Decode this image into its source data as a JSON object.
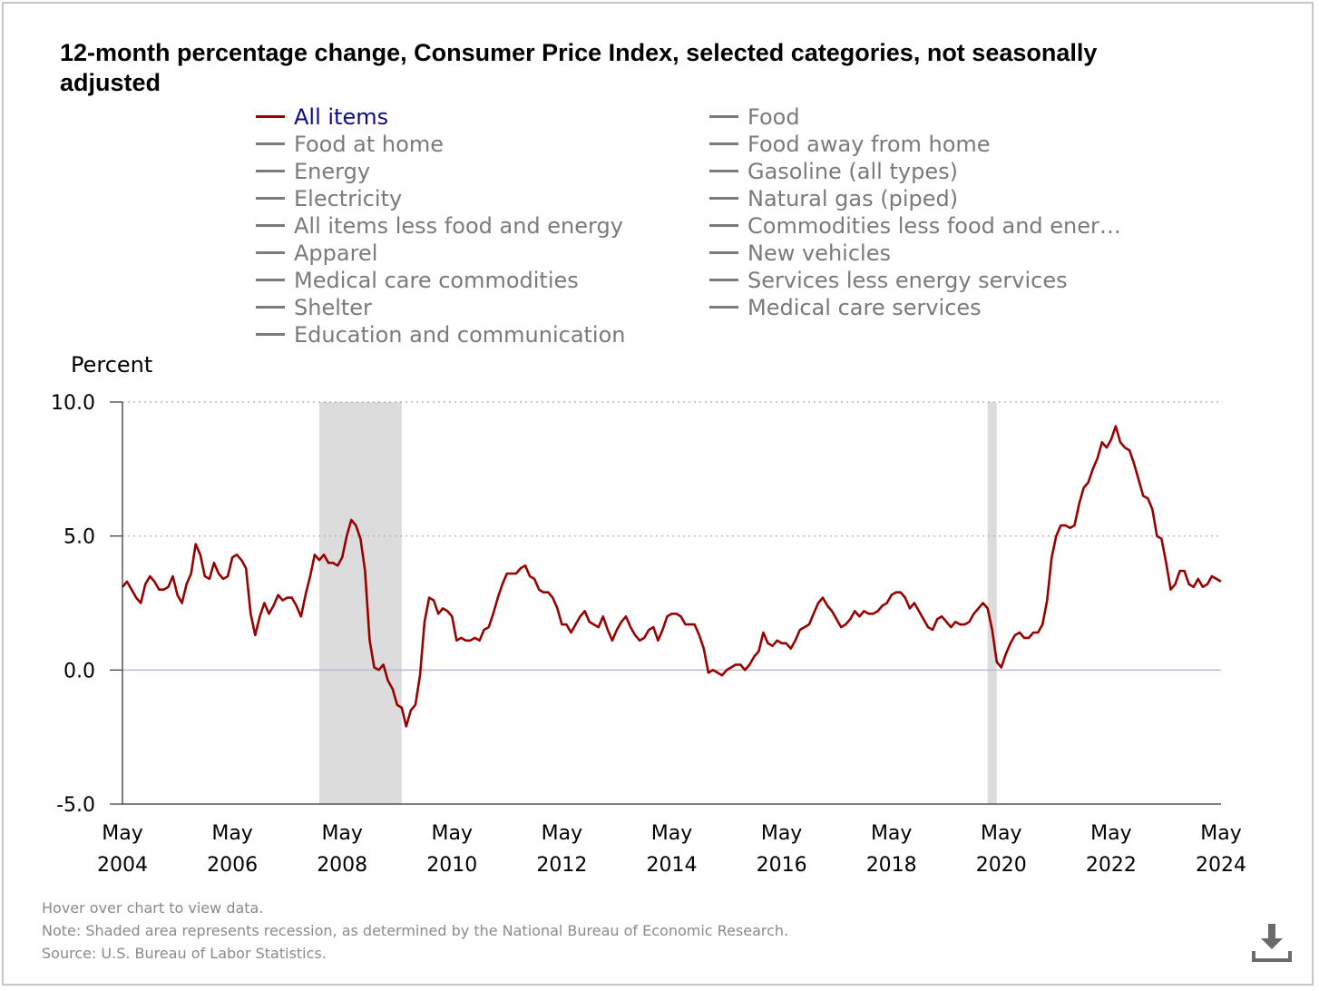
{
  "title": "12-month percentage change, Consumer Price Index, selected categories, not seasonally adjusted",
  "legend": [
    {
      "label": "All items",
      "active": true
    },
    {
      "label": "Food at home",
      "active": false
    },
    {
      "label": "Energy",
      "active": false
    },
    {
      "label": "Electricity",
      "active": false
    },
    {
      "label": "All items less food and energy",
      "active": false
    },
    {
      "label": "Apparel",
      "active": false
    },
    {
      "label": "Medical care commodities",
      "active": false
    },
    {
      "label": "Shelter",
      "active": false
    },
    {
      "label": "Education and communication",
      "active": false
    },
    {
      "label": "Food",
      "active": false
    },
    {
      "label": "Food away from home",
      "active": false
    },
    {
      "label": "Gasoline (all types)",
      "active": false
    },
    {
      "label": "Natural gas (piped)",
      "active": false
    },
    {
      "label": "Commodities less food and ener…",
      "active": false
    },
    {
      "label": "New vehicles",
      "active": false
    },
    {
      "label": "Services less energy services",
      "active": false
    },
    {
      "label": "Medical care services",
      "active": false
    }
  ],
  "notes": {
    "hover": "Hover over chart to view data.",
    "note": "Note: Shaded area represents recession, as determined by the National Bureau of Economic Research.",
    "source": "Source: U.S. Bureau of Labor Statistics."
  },
  "colors": {
    "series": "#990000",
    "active_legend_text": "#0b0b8f",
    "inactive": "#7a7a7a",
    "recession": "#dcdcdc",
    "grid": "#aaaaaa"
  },
  "icons": {
    "download": "download-icon"
  },
  "chart_data": {
    "type": "line",
    "ylabel": "Percent",
    "ylim": [
      -5,
      10
    ],
    "yticks": [
      "10.0",
      "5.0",
      "0.0",
      "-5.0"
    ],
    "yticks_values": [
      10,
      5,
      0,
      -5
    ],
    "xlim": [
      "2004-05",
      "2024-05"
    ],
    "xticks": [
      {
        "at": "2004-05",
        "line1": "May",
        "line2": "2004"
      },
      {
        "at": "2006-05",
        "line1": "May",
        "line2": "2006"
      },
      {
        "at": "2008-05",
        "line1": "May",
        "line2": "2008"
      },
      {
        "at": "2010-05",
        "line1": "May",
        "line2": "2010"
      },
      {
        "at": "2012-05",
        "line1": "May",
        "line2": "2012"
      },
      {
        "at": "2014-05",
        "line1": "May",
        "line2": "2014"
      },
      {
        "at": "2016-05",
        "line1": "May",
        "line2": "2016"
      },
      {
        "at": "2018-05",
        "line1": "May",
        "line2": "2018"
      },
      {
        "at": "2020-05",
        "line1": "May",
        "line2": "2020"
      },
      {
        "at": "2022-05",
        "line1": "May",
        "line2": "2022"
      },
      {
        "at": "2024-05",
        "line1": "May",
        "line2": "2024"
      }
    ],
    "recessions": [
      [
        "2007-12",
        "2009-06"
      ],
      [
        "2020-02",
        "2020-04"
      ]
    ],
    "grid": "horizontal dotted",
    "series": [
      {
        "name": "All items",
        "start": "2004-05",
        "frequency": "monthly",
        "values": [
          3.1,
          3.3,
          3.0,
          2.7,
          2.5,
          3.2,
          3.5,
          3.3,
          3.0,
          3.0,
          3.1,
          3.5,
          2.8,
          2.5,
          3.2,
          3.6,
          4.7,
          4.3,
          3.5,
          3.4,
          4.0,
          3.6,
          3.4,
          3.5,
          4.2,
          4.3,
          4.1,
          3.8,
          2.1,
          1.3,
          2.0,
          2.5,
          2.1,
          2.4,
          2.8,
          2.6,
          2.7,
          2.7,
          2.4,
          2.0,
          2.8,
          3.5,
          4.3,
          4.1,
          4.3,
          4.0,
          4.0,
          3.9,
          4.2,
          5.0,
          5.6,
          5.4,
          4.9,
          3.7,
          1.1,
          0.1,
          0.0,
          0.2,
          -0.4,
          -0.7,
          -1.3,
          -1.4,
          -2.1,
          -1.5,
          -1.3,
          -0.2,
          1.8,
          2.7,
          2.6,
          2.1,
          2.3,
          2.2,
          2.0,
          1.1,
          1.2,
          1.1,
          1.1,
          1.2,
          1.1,
          1.5,
          1.6,
          2.1,
          2.7,
          3.2,
          3.6,
          3.6,
          3.6,
          3.8,
          3.9,
          3.5,
          3.4,
          3.0,
          2.9,
          2.9,
          2.7,
          2.3,
          1.7,
          1.7,
          1.4,
          1.7,
          2.0,
          2.2,
          1.8,
          1.7,
          1.6,
          2.0,
          1.5,
          1.1,
          1.5,
          1.8,
          2.0,
          1.6,
          1.3,
          1.1,
          1.2,
          1.5,
          1.6,
          1.1,
          1.5,
          2.0,
          2.1,
          2.1,
          2.0,
          1.7,
          1.7,
          1.7,
          1.3,
          0.8,
          -0.1,
          0.0,
          -0.1,
          -0.2,
          0.0,
          0.1,
          0.2,
          0.2,
          0.0,
          0.2,
          0.5,
          0.7,
          1.4,
          1.0,
          0.9,
          1.1,
          1.0,
          1.0,
          0.8,
          1.1,
          1.5,
          1.6,
          1.7,
          2.1,
          2.5,
          2.7,
          2.4,
          2.2,
          1.9,
          1.6,
          1.7,
          1.9,
          2.2,
          2.0,
          2.2,
          2.1,
          2.1,
          2.2,
          2.4,
          2.5,
          2.8,
          2.9,
          2.9,
          2.7,
          2.3,
          2.5,
          2.2,
          1.9,
          1.6,
          1.5,
          1.9,
          2.0,
          1.8,
          1.6,
          1.8,
          1.7,
          1.7,
          1.8,
          2.1,
          2.3,
          2.5,
          2.3,
          1.5,
          0.3,
          0.1,
          0.6,
          1.0,
          1.3,
          1.4,
          1.2,
          1.2,
          1.4,
          1.4,
          1.7,
          2.6,
          4.2,
          5.0,
          5.4,
          5.4,
          5.3,
          5.4,
          6.2,
          6.8,
          7.0,
          7.5,
          7.9,
          8.5,
          8.3,
          8.6,
          9.1,
          8.5,
          8.3,
          8.2,
          7.7,
          7.1,
          6.5,
          6.4,
          6.0,
          5.0,
          4.9,
          4.0,
          3.0,
          3.2,
          3.7,
          3.7,
          3.2,
          3.1,
          3.4,
          3.1,
          3.2,
          3.5,
          3.4,
          3.3
        ]
      }
    ]
  }
}
